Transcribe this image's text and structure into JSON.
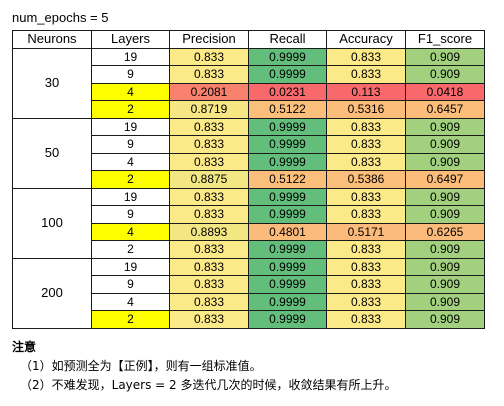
{
  "caption": "num_epochs = 5",
  "headers": [
    "Neurons",
    "Layers",
    "Precision",
    "Recall",
    "Accuracy",
    "F1_score"
  ],
  "groups": [
    {
      "neurons": "30",
      "rows": [
        {
          "layers": "19",
          "layers_highlight": false,
          "values": [
            "0.833",
            "0.9999",
            "0.833",
            "0.909"
          ],
          "colors": [
            "#fce988",
            "#63be7b",
            "#fce988",
            "#a2d07f"
          ]
        },
        {
          "layers": "9",
          "layers_highlight": false,
          "values": [
            "0.833",
            "0.9999",
            "0.833",
            "0.909"
          ],
          "colors": [
            "#fce988",
            "#63be7b",
            "#fce988",
            "#a2d07f"
          ]
        },
        {
          "layers": "4",
          "layers_highlight": true,
          "values": [
            "0.2081",
            "0.0231",
            "0.113",
            "0.0418"
          ],
          "colors": [
            "#f8816e",
            "#f8696b",
            "#f8696b",
            "#f8696b"
          ]
        },
        {
          "layers": "2",
          "layers_highlight": true,
          "values": [
            "0.8719",
            "0.5122",
            "0.5316",
            "0.6457"
          ],
          "colors": [
            "#f6e784",
            "#fcbf7b",
            "#fcbd7b",
            "#fcbd7b"
          ]
        }
      ]
    },
    {
      "neurons": "50",
      "rows": [
        {
          "layers": "19",
          "layers_highlight": false,
          "values": [
            "0.833",
            "0.9999",
            "0.833",
            "0.909"
          ],
          "colors": [
            "#fce988",
            "#63be7b",
            "#fce988",
            "#a2d07f"
          ]
        },
        {
          "layers": "9",
          "layers_highlight": false,
          "values": [
            "0.833",
            "0.9999",
            "0.833",
            "0.909"
          ],
          "colors": [
            "#fce988",
            "#63be7b",
            "#fce988",
            "#a2d07f"
          ]
        },
        {
          "layers": "4",
          "layers_highlight": false,
          "values": [
            "0.833",
            "0.9999",
            "0.833",
            "0.909"
          ],
          "colors": [
            "#fce988",
            "#63be7b",
            "#fce988",
            "#a2d07f"
          ]
        },
        {
          "layers": "2",
          "layers_highlight": true,
          "values": [
            "0.8875",
            "0.5122",
            "0.5386",
            "0.6497"
          ],
          "colors": [
            "#f3e784",
            "#fcbf7b",
            "#fcbf7b",
            "#fcbd7b"
          ]
        }
      ]
    },
    {
      "neurons": "100",
      "rows": [
        {
          "layers": "19",
          "layers_highlight": false,
          "values": [
            "0.833",
            "0.9999",
            "0.833",
            "0.909"
          ],
          "colors": [
            "#fce988",
            "#63be7b",
            "#fce988",
            "#a2d07f"
          ]
        },
        {
          "layers": "9",
          "layers_highlight": false,
          "values": [
            "0.833",
            "0.9999",
            "0.833",
            "0.909"
          ],
          "colors": [
            "#fce988",
            "#63be7b",
            "#fce988",
            "#a2d07f"
          ]
        },
        {
          "layers": "4",
          "layers_highlight": true,
          "values": [
            "0.8893",
            "0.4801",
            "0.5171",
            "0.6265"
          ],
          "colors": [
            "#f3e784",
            "#fcbb7b",
            "#fcbb7b",
            "#fcbb7b"
          ]
        },
        {
          "layers": "2",
          "layers_highlight": false,
          "values": [
            "0.833",
            "0.9999",
            "0.833",
            "0.909"
          ],
          "colors": [
            "#fce988",
            "#63be7b",
            "#fce988",
            "#a2d07f"
          ]
        }
      ]
    },
    {
      "neurons": "200",
      "rows": [
        {
          "layers": "19",
          "layers_highlight": false,
          "values": [
            "0.833",
            "0.9999",
            "0.833",
            "0.909"
          ],
          "colors": [
            "#fce988",
            "#63be7b",
            "#fce988",
            "#a2d07f"
          ]
        },
        {
          "layers": "9",
          "layers_highlight": false,
          "values": [
            "0.833",
            "0.9999",
            "0.833",
            "0.909"
          ],
          "colors": [
            "#fce988",
            "#63be7b",
            "#fce988",
            "#a2d07f"
          ]
        },
        {
          "layers": "4",
          "layers_highlight": false,
          "values": [
            "0.833",
            "0.9999",
            "0.833",
            "0.909"
          ],
          "colors": [
            "#fce988",
            "#63be7b",
            "#fce988",
            "#a2d07f"
          ]
        },
        {
          "layers": "2",
          "layers_highlight": true,
          "values": [
            "0.833",
            "0.9999",
            "0.833",
            "0.909"
          ],
          "colors": [
            "#fce988",
            "#63be7b",
            "#fce988",
            "#a2d07f"
          ]
        }
      ]
    }
  ],
  "highlight_color": "#ffff00",
  "notes": {
    "title": "注意",
    "items": [
      "（1）如预测全为【正例】，则有一组标准值。",
      "（2）不难发现，Layers = 2  多迭代几次的时候，收敛结果有所上升。"
    ]
  }
}
